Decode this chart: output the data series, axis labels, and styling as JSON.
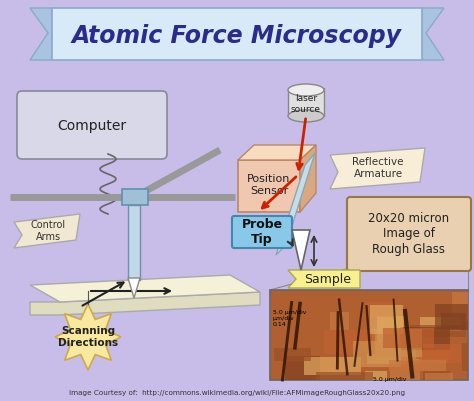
{
  "title": "Atomic Force Microscopy",
  "bg_color": "#c8bde8",
  "title_color": "#2b2b8b",
  "banner_inner_color": "#ddeeff",
  "banner_wing_color": "#a8c8e8",
  "footer_text": "Image Courtesy of:  http://commons.wikimedia.org/wiki/File:AFMimageRoughGlass20x20.png",
  "labels": {
    "computer": "Computer",
    "laser": "laser\nsource",
    "position_sensor": "Position\nSensor",
    "reflective": "Reflective\nArmature",
    "probe_tip": "Probe\nTip",
    "sample": "Sample",
    "control_arms": "Control\nArms",
    "scanning": "Scanning\nDirections",
    "image_label": "20x20 micron\nImage of\nRough Glass"
  }
}
